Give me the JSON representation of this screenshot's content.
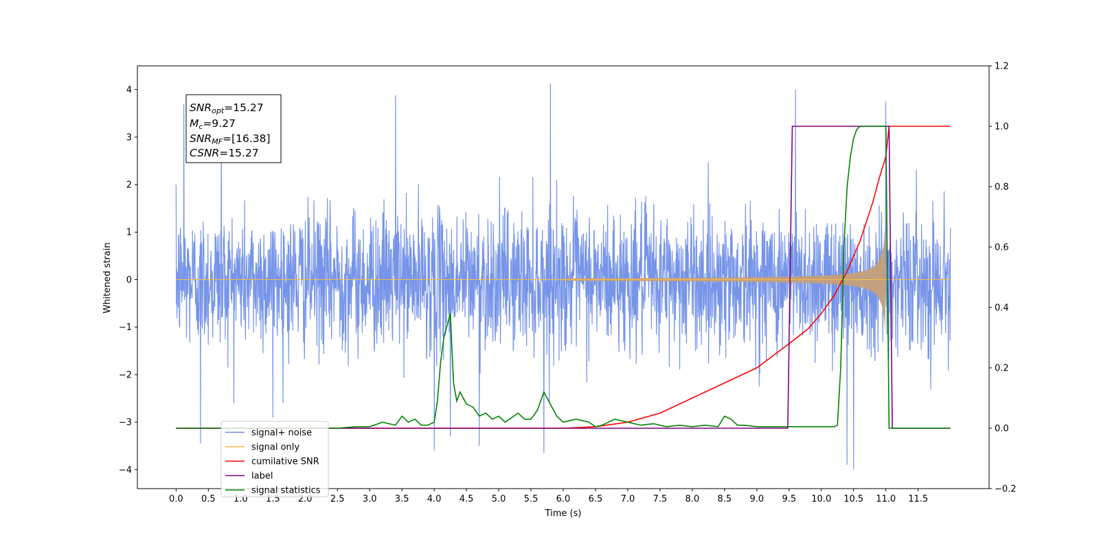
{
  "chart_data": {
    "type": "line",
    "xlabel": "Time (s)",
    "ylabel": "Whitened strain",
    "xlim": [
      -0.6,
      12.6
    ],
    "ylim_left": [
      -4.4,
      4.5
    ],
    "ylim_right": [
      -0.2,
      1.2
    ],
    "x_ticks": [
      "0.0",
      "0.5",
      "1.0",
      "1.5",
      "2.0",
      "2.5",
      "3.0",
      "3.5",
      "4.0",
      "4.5",
      "5.0",
      "5.5",
      "6.0",
      "6.5",
      "7.0",
      "7.5",
      "8.0",
      "8.5",
      "9.0",
      "9.5",
      "10.0",
      "10.5",
      "11.0",
      "11.5"
    ],
    "y_ticks_left": [
      "−4",
      "−3",
      "−2",
      "−1",
      "0",
      "1",
      "2",
      "3",
      "4"
    ],
    "y_ticks_right": [
      "−0.2",
      "0.0",
      "0.2",
      "0.4",
      "0.6",
      "0.8",
      "1.0",
      "1.2"
    ],
    "annotation": {
      "snr_opt": {
        "sym": "SNR",
        "sub": "opt",
        "val": "=15.27"
      },
      "mc": {
        "sym": "M",
        "sub": "c",
        "val": "=9.27"
      },
      "snr_mf": {
        "sym": "SNR",
        "sub": "MF",
        "val": "=[16.38]"
      },
      "csnr": {
        "sym": "CSNR",
        "sub": "",
        "val": "=15.27"
      }
    },
    "series": [
      {
        "name": "signal+ noise",
        "color": "#6f8ee8",
        "axis": "left",
        "noise_sigma": 0.72,
        "x_range": [
          0.0,
          12.0
        ],
        "spikes": [
          [
            0.12,
            3.7
          ],
          [
            0.38,
            -3.45
          ],
          [
            0.7,
            3.3
          ],
          [
            1.5,
            -2.9
          ],
          [
            3.4,
            3.88
          ],
          [
            4.0,
            -3.6
          ],
          [
            4.25,
            -3.3
          ],
          [
            4.7,
            -3.5
          ],
          [
            5.8,
            4.13
          ],
          [
            5.7,
            -3.65
          ],
          [
            9.6,
            4.0
          ],
          [
            10.4,
            -3.9
          ],
          [
            10.5,
            -4.0
          ],
          [
            11.0,
            3.75
          ]
        ]
      },
      {
        "name": "signal only",
        "color": "#f5b94a",
        "axis": "left",
        "chirp_end": 11.0
      },
      {
        "name": "cumilative SNR",
        "color": "#ff0000",
        "axis": "right",
        "x": [
          0,
          6.0,
          6.5,
          7.0,
          7.5,
          8.0,
          8.5,
          9.0,
          9.5,
          9.8,
          10.0,
          10.2,
          10.4,
          10.6,
          10.8,
          10.9,
          11.0,
          11.05,
          11.5,
          12.0
        ],
        "y": [
          0,
          0,
          0.005,
          0.02,
          0.05,
          0.1,
          0.15,
          0.2,
          0.28,
          0.33,
          0.38,
          0.44,
          0.52,
          0.62,
          0.75,
          0.83,
          0.9,
          1.0,
          1.0,
          1.0
        ]
      },
      {
        "name": "label",
        "color": "#800080",
        "axis": "right",
        "x": [
          0,
          9.48,
          9.55,
          11.05,
          11.1,
          12.0
        ],
        "y": [
          0,
          0,
          1,
          1,
          0,
          0
        ]
      },
      {
        "name": "signal statistics",
        "color": "#008000",
        "axis": "right",
        "x": [
          0,
          2.5,
          2.8,
          3.0,
          3.2,
          3.4,
          3.5,
          3.6,
          3.7,
          3.8,
          3.9,
          4.0,
          4.05,
          4.1,
          4.15,
          4.2,
          4.25,
          4.3,
          4.35,
          4.4,
          4.5,
          4.6,
          4.7,
          4.8,
          4.9,
          5.0,
          5.1,
          5.3,
          5.4,
          5.5,
          5.6,
          5.7,
          5.8,
          5.9,
          6.0,
          6.2,
          6.4,
          6.5,
          6.6,
          6.7,
          6.8,
          6.9,
          7.0,
          7.2,
          7.4,
          7.6,
          7.8,
          8.0,
          8.2,
          8.4,
          8.5,
          8.6,
          8.7,
          8.8,
          9.0,
          9.5,
          10.0,
          10.2,
          10.25,
          10.3,
          10.35,
          10.4,
          10.45,
          10.5,
          10.55,
          10.6,
          10.7,
          10.8,
          11.0,
          11.05,
          11.1,
          11.5,
          12.0
        ],
        "y": [
          0,
          0,
          0.005,
          0.005,
          0.02,
          0.01,
          0.04,
          0.02,
          0.03,
          0.01,
          0.01,
          0.02,
          0.09,
          0.22,
          0.3,
          0.34,
          0.38,
          0.15,
          0.09,
          0.12,
          0.08,
          0.07,
          0.04,
          0.05,
          0.03,
          0.04,
          0.02,
          0.05,
          0.03,
          0.03,
          0.06,
          0.12,
          0.08,
          0.04,
          0.02,
          0.03,
          0.02,
          0.005,
          0.01,
          0.02,
          0.03,
          0.025,
          0.02,
          0.01,
          0.015,
          0.005,
          0.01,
          0.005,
          0.01,
          0.005,
          0.04,
          0.03,
          0.01,
          0.01,
          0.005,
          0.005,
          0.005,
          0.005,
          0.01,
          0.2,
          0.6,
          0.8,
          0.9,
          0.96,
          0.99,
          1.0,
          1.0,
          1.0,
          1.0,
          0.0,
          0.0,
          0.0,
          0.0
        ]
      }
    ],
    "legend": {
      "position": "lower-left",
      "entries": [
        "signal+ noise",
        "signal only",
        "cumilative SNR",
        "label",
        "signal statistics"
      ]
    },
    "grid": false
  }
}
